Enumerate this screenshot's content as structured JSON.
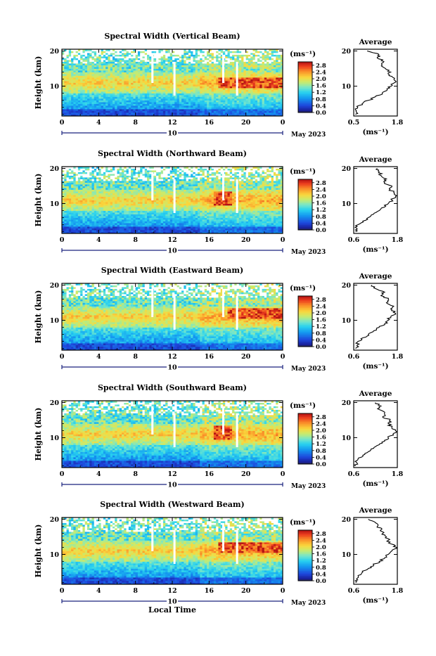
{
  "figure": {
    "date_label": "May 2023",
    "day_label": "10",
    "xlabel": "Local Time",
    "units_label": "(ms⁻¹)",
    "avg_title": "Average",
    "avg_xlabel": "(ms⁻¹)"
  },
  "chart_data": [
    {
      "type": "heatmap",
      "title": "Spectral Width (Vertical Beam)",
      "ylabel": "Height (km)",
      "xlabel": "",
      "x_ticks": [
        "0",
        "4",
        "8",
        "12",
        "16",
        "20",
        "0"
      ],
      "y_ticks": [
        "10",
        "20"
      ],
      "xlim": [
        0,
        24
      ],
      "ylim": [
        1.5,
        20.5
      ],
      "colorbar_ticks": [
        "0.0",
        "0.4",
        "0.8",
        "1.2",
        "1.6",
        "2.0",
        "2.4",
        "2.8"
      ],
      "colorbar_range": [
        0.0,
        3.0
      ],
      "max_region_hours": [
        17,
        24
      ],
      "max_region_height_km": [
        9.5,
        12.5
      ],
      "average_profile": {
        "xlim": [
          0.5,
          1.8
        ],
        "x_ticks": [
          "0.5",
          "1.8"
        ],
        "y_ticks": [
          "10",
          "20"
        ],
        "height_km": [
          2,
          3,
          4,
          5,
          6,
          7,
          8,
          9,
          10,
          11,
          12,
          13,
          14,
          15,
          16,
          17,
          18,
          19,
          20
        ],
        "width_ms": [
          0.55,
          0.58,
          0.62,
          0.75,
          0.95,
          1.15,
          1.35,
          1.5,
          1.62,
          1.72,
          1.7,
          1.55,
          1.6,
          1.45,
          1.35,
          1.4,
          1.2,
          1.25,
          0.9
        ]
      }
    },
    {
      "type": "heatmap",
      "title": "Spectral Width (Northward Beam)",
      "ylabel": "Height (km)",
      "xlabel": "",
      "x_ticks": [
        "0",
        "4",
        "8",
        "12",
        "16",
        "20",
        "0"
      ],
      "y_ticks": [
        "10",
        "20"
      ],
      "xlim": [
        0,
        24
      ],
      "ylim": [
        1.5,
        20.5
      ],
      "colorbar_ticks": [
        "0.0",
        "0.4",
        "0.8",
        "1.2",
        "1.6",
        "2.0",
        "2.4",
        "2.8"
      ],
      "colorbar_range": [
        0.0,
        3.0
      ],
      "max_region_hours": [
        16.5,
        18.5
      ],
      "max_region_height_km": [
        9.5,
        13.5
      ],
      "average_profile": {
        "xlim": [
          0.6,
          1.8
        ],
        "x_ticks": [
          "0.6",
          "1.8"
        ],
        "y_ticks": [
          "10",
          "20"
        ],
        "height_km": [
          2,
          3,
          4,
          5,
          6,
          7,
          8,
          9,
          10,
          11,
          12,
          13,
          14,
          15,
          16,
          17,
          18,
          19,
          20
        ],
        "width_ms": [
          0.65,
          0.68,
          0.72,
          0.85,
          1.0,
          1.15,
          1.3,
          1.45,
          1.55,
          1.65,
          1.75,
          1.72,
          1.6,
          1.65,
          1.45,
          1.5,
          1.35,
          1.3,
          1.25
        ]
      }
    },
    {
      "type": "heatmap",
      "title": "Spectral Width (Eastward Beam)",
      "ylabel": "Height (km)",
      "xlabel": "",
      "x_ticks": [
        "0",
        "4",
        "8",
        "12",
        "16",
        "20",
        "0"
      ],
      "y_ticks": [
        "10",
        "20"
      ],
      "xlim": [
        0,
        24
      ],
      "ylim": [
        1.5,
        20.5
      ],
      "colorbar_ticks": [
        "0.0",
        "0.4",
        "0.8",
        "1.2",
        "1.6",
        "2.0",
        "2.4",
        "2.8"
      ],
      "colorbar_range": [
        0.0,
        3.0
      ],
      "max_region_hours": [
        18,
        24
      ],
      "max_region_height_km": [
        10.5,
        13.5
      ],
      "average_profile": {
        "xlim": [
          0.6,
          1.8
        ],
        "x_ticks": [
          "0.6",
          "1.8"
        ],
        "y_ticks": [
          "10",
          "20"
        ],
        "height_km": [
          2,
          3,
          4,
          5,
          6,
          7,
          8,
          9,
          10,
          11,
          12,
          13,
          14,
          15,
          16,
          17,
          18,
          19,
          20
        ],
        "width_ms": [
          0.65,
          0.7,
          0.72,
          0.85,
          1.0,
          1.15,
          1.3,
          1.45,
          1.55,
          1.62,
          1.75,
          1.65,
          1.7,
          1.5,
          1.55,
          1.35,
          1.45,
          1.2,
          1.1
        ]
      }
    },
    {
      "type": "heatmap",
      "title": "Spectral Width (Southward Beam)",
      "ylabel": "Height (km)",
      "xlabel": "",
      "x_ticks": [
        "0",
        "4",
        "8",
        "12",
        "16",
        "20",
        "0"
      ],
      "y_ticks": [
        "10",
        "20"
      ],
      "xlim": [
        0,
        24
      ],
      "ylim": [
        1.5,
        20.5
      ],
      "colorbar_ticks": [
        "0.0",
        "0.4",
        "0.8",
        "1.2",
        "1.6",
        "2.0",
        "2.4",
        "2.8"
      ],
      "colorbar_range": [
        0.0,
        3.0
      ],
      "max_region_hours": [
        16.5,
        18.5
      ],
      "max_region_height_km": [
        9.5,
        13.5
      ],
      "average_profile": {
        "xlim": [
          0.6,
          1.8
        ],
        "x_ticks": [
          "0.6",
          "1.8"
        ],
        "y_ticks": [
          "10",
          "20"
        ],
        "height_km": [
          2,
          3,
          4,
          5,
          6,
          7,
          8,
          9,
          10,
          11,
          12,
          13,
          14,
          15,
          16,
          17,
          18,
          19,
          20
        ],
        "width_ms": [
          0.65,
          0.68,
          0.72,
          0.85,
          1.0,
          1.15,
          1.3,
          1.45,
          1.55,
          1.68,
          1.75,
          1.65,
          1.55,
          1.6,
          1.4,
          1.45,
          1.3,
          1.35,
          1.2
        ]
      }
    },
    {
      "type": "heatmap",
      "title": "Spectral Width (Westward Beam)",
      "ylabel": "Height (km)",
      "xlabel": "Local Time",
      "x_ticks": [
        "0",
        "4",
        "8",
        "12",
        "16",
        "20",
        "0"
      ],
      "y_ticks": [
        "10",
        "20"
      ],
      "xlim": [
        0,
        24
      ],
      "ylim": [
        1.5,
        20.5
      ],
      "colorbar_ticks": [
        "0.0",
        "0.4",
        "0.8",
        "1.2",
        "1.6",
        "2.0",
        "2.4",
        "2.8"
      ],
      "colorbar_range": [
        0.0,
        3.0
      ],
      "max_region_hours": [
        17,
        24
      ],
      "max_region_height_km": [
        10.5,
        13.5
      ],
      "average_profile": {
        "xlim": [
          0.6,
          1.8
        ],
        "x_ticks": [
          "0.6",
          "1.8"
        ],
        "y_ticks": [
          "10",
          "20"
        ],
        "height_km": [
          2,
          3,
          4,
          5,
          6,
          7,
          8,
          9,
          10,
          11,
          12,
          13,
          14,
          15,
          16,
          17,
          18,
          19,
          20
        ],
        "width_ms": [
          0.65,
          0.68,
          0.72,
          0.85,
          1.0,
          1.15,
          1.3,
          1.45,
          1.55,
          1.65,
          1.78,
          1.62,
          1.55,
          1.5,
          1.4,
          1.35,
          1.25,
          1.2,
          1.0
        ]
      }
    }
  ]
}
